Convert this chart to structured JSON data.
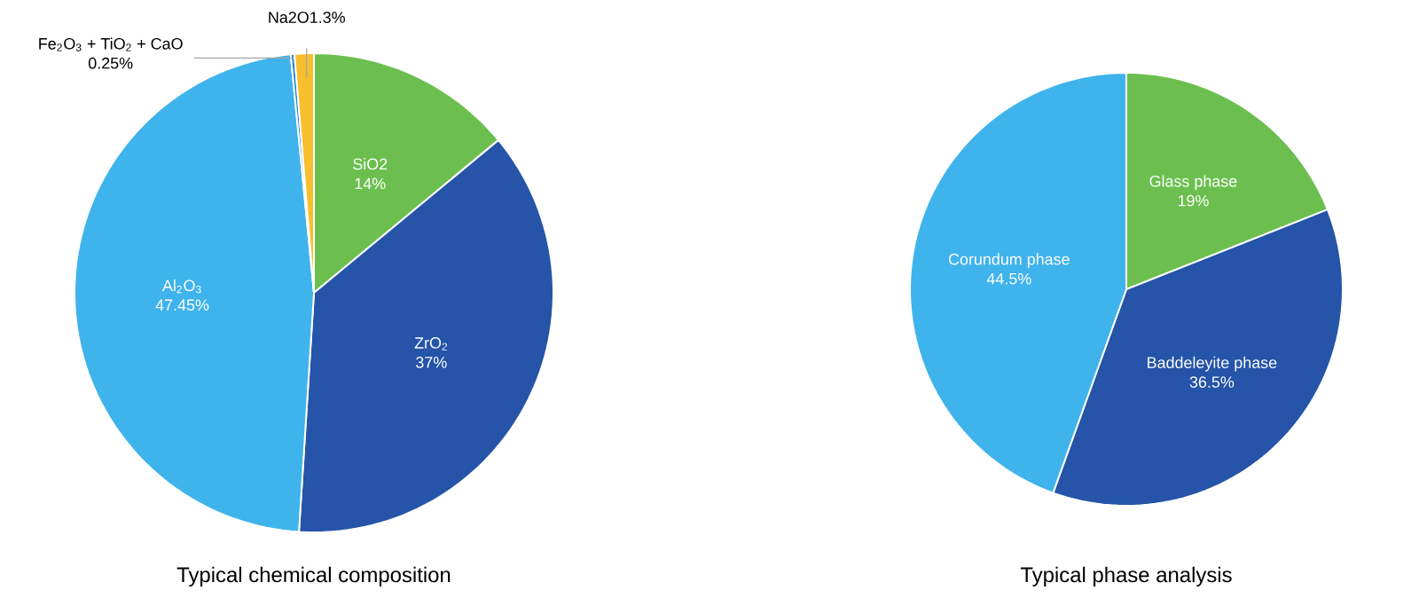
{
  "chart_data": [
    {
      "type": "pie",
      "title": "Typical chemical composition",
      "categories": [
        "SiO2",
        "ZrO$_{2}$",
        "Al$_{2}$O$_{3}$",
        "Fe$_{2}$O$_{3}$ + TiO$_{2}$ + CaO",
        "Na2O"
      ],
      "values": [
        14,
        37,
        47.45,
        0.25,
        1.3
      ],
      "value_labels": [
        "14%",
        "37%",
        "47.45%",
        "0.25%",
        "1.3%"
      ],
      "colors": [
        "#6cbf4f",
        "#2554a8",
        "#3fb3ec",
        "#1c83d6",
        "#f8bf2c"
      ]
    },
    {
      "type": "pie",
      "title": "Typical phase analysis",
      "categories": [
        "Glass phase",
        "Baddeleyite phase",
        "Corundum phase"
      ],
      "values": [
        19,
        36.5,
        44.5
      ],
      "value_labels": [
        "19%",
        "36.5%",
        "44.5%"
      ],
      "colors": [
        "#6cbf4f",
        "#2554a8",
        "#3fb3ec"
      ]
    }
  ]
}
